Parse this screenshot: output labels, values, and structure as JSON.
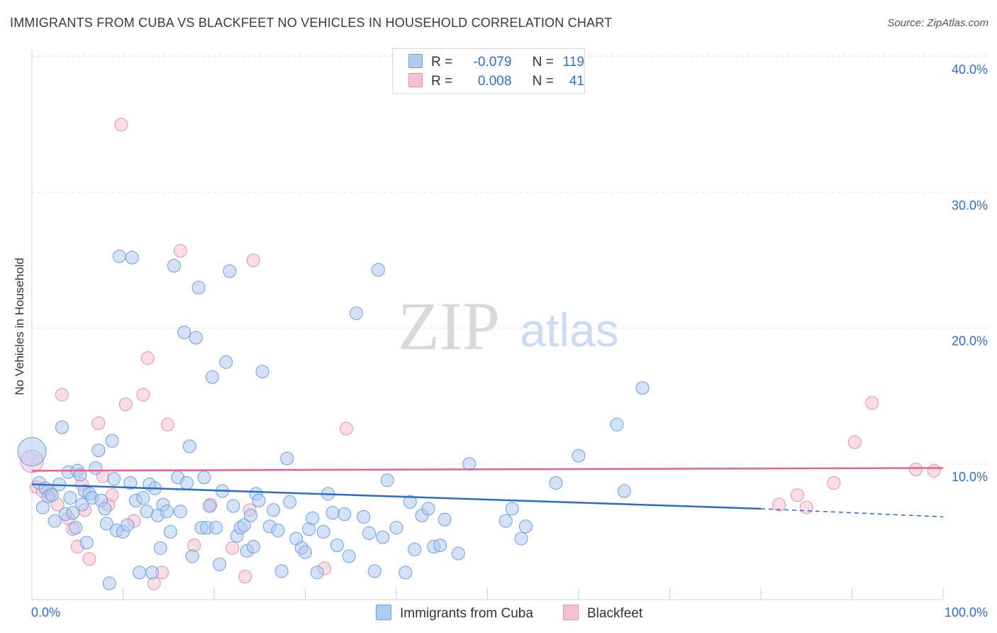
{
  "header": {
    "title": "IMMIGRANTS FROM CUBA VS BLACKFEET NO VEHICLES IN HOUSEHOLD CORRELATION CHART",
    "source": "Source: ZipAtlas.com"
  },
  "stats": [
    {
      "r_label": "R =",
      "r_value": "-0.079",
      "n_label": "N =",
      "n_value": "119"
    },
    {
      "r_label": "R =",
      "r_value": "0.008",
      "n_label": "N =",
      "n_value": "41"
    }
  ],
  "watermark": {
    "zip": "ZIP",
    "atlas": "atlas"
  },
  "legend": [
    "Immigrants from Cuba",
    "Blackfeet"
  ],
  "colors": {
    "blue_fill": "#aecbf0",
    "blue_stroke": "#6d9ee0",
    "blue_line": "#2a6cc8",
    "pink_fill": "#f6c1d2",
    "pink_stroke": "#e98fae",
    "pink_line": "#e8608f",
    "tick_text": "#2f6fd0",
    "grid": "#e3e3e3"
  },
  "chart_data": {
    "type": "scatter",
    "title": "IMMIGRANTS FROM CUBA VS BLACKFEET NO VEHICLES IN HOUSEHOLD CORRELATION CHART",
    "xlabel": "",
    "ylabel": "No Vehicles in Household",
    "xlim": [
      0,
      100
    ],
    "ylim": [
      0,
      40
    ],
    "x_tick_labels": [
      "0.0%",
      "100.0%"
    ],
    "y_ticks": [
      10,
      20,
      30,
      40
    ],
    "y_tick_labels": [
      "10.0%",
      "20.0%",
      "30.0%",
      "40.0%"
    ],
    "grid": true,
    "series": [
      {
        "name": "Immigrants from Cuba",
        "r": -0.079,
        "n": 119,
        "trend": {
          "x0": 0,
          "y0": 8.5,
          "x1": 80,
          "y1": 6.7,
          "dash_x1": 100,
          "dash_y1": 6.1
        },
        "points": [
          [
            0,
            10.9
          ],
          [
            0.8,
            8.6
          ],
          [
            1.2,
            6.8
          ],
          [
            1.5,
            8.2
          ],
          [
            1.8,
            7.6
          ],
          [
            2.2,
            7.7
          ],
          [
            2.5,
            5.8
          ],
          [
            3,
            8.5
          ],
          [
            3.3,
            12.7
          ],
          [
            3.7,
            6.3
          ],
          [
            4,
            9.4
          ],
          [
            4.2,
            7.5
          ],
          [
            4.5,
            6.4
          ],
          [
            4.8,
            5.3
          ],
          [
            5,
            9.5
          ],
          [
            5.3,
            9.2
          ],
          [
            5.5,
            7.0
          ],
          [
            5.8,
            8.0
          ],
          [
            6,
            4.2
          ],
          [
            6.3,
            7.8
          ],
          [
            6.6,
            7.5
          ],
          [
            7,
            9.7
          ],
          [
            7.3,
            11.0
          ],
          [
            7.6,
            7.3
          ],
          [
            8,
            6.7
          ],
          [
            8.2,
            5.6
          ],
          [
            8.5,
            1.2
          ],
          [
            8.8,
            11.7
          ],
          [
            9,
            8.9
          ],
          [
            9.3,
            5.1
          ],
          [
            9.6,
            25.3
          ],
          [
            10,
            5.0
          ],
          [
            10.5,
            5.5
          ],
          [
            10.8,
            8.6
          ],
          [
            11,
            25.2
          ],
          [
            11.4,
            7.3
          ],
          [
            11.8,
            2.0
          ],
          [
            12.2,
            7.5
          ],
          [
            12.6,
            6.5
          ],
          [
            12.9,
            8.5
          ],
          [
            13.2,
            2.0
          ],
          [
            13.5,
            8.2
          ],
          [
            13.8,
            6.2
          ],
          [
            14.1,
            3.8
          ],
          [
            14.4,
            7.0
          ],
          [
            14.8,
            6.5
          ],
          [
            15.2,
            5.0
          ],
          [
            15.6,
            24.6
          ],
          [
            16,
            9.0
          ],
          [
            16.3,
            6.5
          ],
          [
            16.7,
            19.7
          ],
          [
            17,
            8.6
          ],
          [
            17.3,
            11.3
          ],
          [
            17.6,
            3.2
          ],
          [
            18,
            19.3
          ],
          [
            18.3,
            23.0
          ],
          [
            18.6,
            5.3
          ],
          [
            18.9,
            9.0
          ],
          [
            19.2,
            5.3
          ],
          [
            19.5,
            6.9
          ],
          [
            19.8,
            16.4
          ],
          [
            20.2,
            5.3
          ],
          [
            20.6,
            2.6
          ],
          [
            20.9,
            8.0
          ],
          [
            21.3,
            17.5
          ],
          [
            21.7,
            24.2
          ],
          [
            22.1,
            6.9
          ],
          [
            22.5,
            4.7
          ],
          [
            22.9,
            5.3
          ],
          [
            23.3,
            5.5
          ],
          [
            23.6,
            3.6
          ],
          [
            24,
            6.2
          ],
          [
            24.3,
            3.9
          ],
          [
            24.6,
            7.8
          ],
          [
            24.9,
            7.3
          ],
          [
            25.3,
            16.8
          ],
          [
            26.1,
            5.4
          ],
          [
            26.5,
            6.6
          ],
          [
            27,
            5.1
          ],
          [
            27.4,
            2.1
          ],
          [
            28,
            10.4
          ],
          [
            28.3,
            7.2
          ],
          [
            29,
            4.5
          ],
          [
            29.6,
            3.8
          ],
          [
            30,
            3.5
          ],
          [
            30.4,
            5.2
          ],
          [
            30.8,
            6.0
          ],
          [
            31.3,
            2.0
          ],
          [
            32,
            5.0
          ],
          [
            32.5,
            7.8
          ],
          [
            33,
            6.4
          ],
          [
            33.5,
            4.0
          ],
          [
            34.3,
            6.3
          ],
          [
            34.8,
            3.2
          ],
          [
            35.6,
            21.1
          ],
          [
            36.4,
            6.1
          ],
          [
            37,
            4.9
          ],
          [
            37.6,
            2.1
          ],
          [
            38,
            24.3
          ],
          [
            38.5,
            4.6
          ],
          [
            39,
            8.8
          ],
          [
            40,
            5.3
          ],
          [
            41,
            2.0
          ],
          [
            41.5,
            7.2
          ],
          [
            42,
            3.7
          ],
          [
            42.8,
            6.2
          ],
          [
            43.5,
            6.7
          ],
          [
            44.1,
            3.9
          ],
          [
            44.8,
            4.0
          ],
          [
            45.3,
            5.9
          ],
          [
            46.8,
            3.4
          ],
          [
            48,
            10.0
          ],
          [
            52,
            5.8
          ],
          [
            52.7,
            6.7
          ],
          [
            53.7,
            4.5
          ],
          [
            54.2,
            5.4
          ],
          [
            57.5,
            8.6
          ],
          [
            60,
            10.6
          ],
          [
            64.2,
            12.9
          ],
          [
            65,
            8.0
          ],
          [
            67,
            15.6
          ]
        ]
      },
      {
        "name": "Blackfeet",
        "r": 0.008,
        "n": 41,
        "trend": {
          "x0": 0,
          "y0": 9.5,
          "x1": 100,
          "y1": 9.7
        },
        "points": [
          [
            0,
            10.2
          ],
          [
            0.5,
            8.3
          ],
          [
            1.2,
            8.0
          ],
          [
            2,
            7.8
          ],
          [
            2.8,
            7.0
          ],
          [
            3.3,
            15.1
          ],
          [
            4,
            6.0
          ],
          [
            4.5,
            5.2
          ],
          [
            5,
            3.9
          ],
          [
            5.5,
            8.5
          ],
          [
            5.8,
            6.6
          ],
          [
            6.3,
            3.0
          ],
          [
            7.3,
            13.0
          ],
          [
            7.8,
            9.1
          ],
          [
            8.4,
            7.0
          ],
          [
            8.8,
            7.7
          ],
          [
            9.8,
            35.0
          ],
          [
            10.3,
            14.4
          ],
          [
            11.2,
            5.8
          ],
          [
            12.2,
            15.1
          ],
          [
            12.7,
            17.8
          ],
          [
            13.4,
            1.2
          ],
          [
            14.3,
            2.0
          ],
          [
            14.9,
            12.9
          ],
          [
            16.3,
            25.7
          ],
          [
            17.8,
            4.0
          ],
          [
            19.6,
            7.0
          ],
          [
            22,
            3.8
          ],
          [
            23.4,
            1.7
          ],
          [
            23.9,
            6.6
          ],
          [
            24.3,
            25.0
          ],
          [
            32.1,
            2.3
          ],
          [
            34.5,
            12.6
          ],
          [
            82,
            7.0
          ],
          [
            84,
            7.7
          ],
          [
            85,
            6.8
          ],
          [
            88,
            8.6
          ],
          [
            90.3,
            11.6
          ],
          [
            92.2,
            14.5
          ],
          [
            97,
            9.6
          ],
          [
            99,
            9.5
          ]
        ]
      }
    ]
  }
}
